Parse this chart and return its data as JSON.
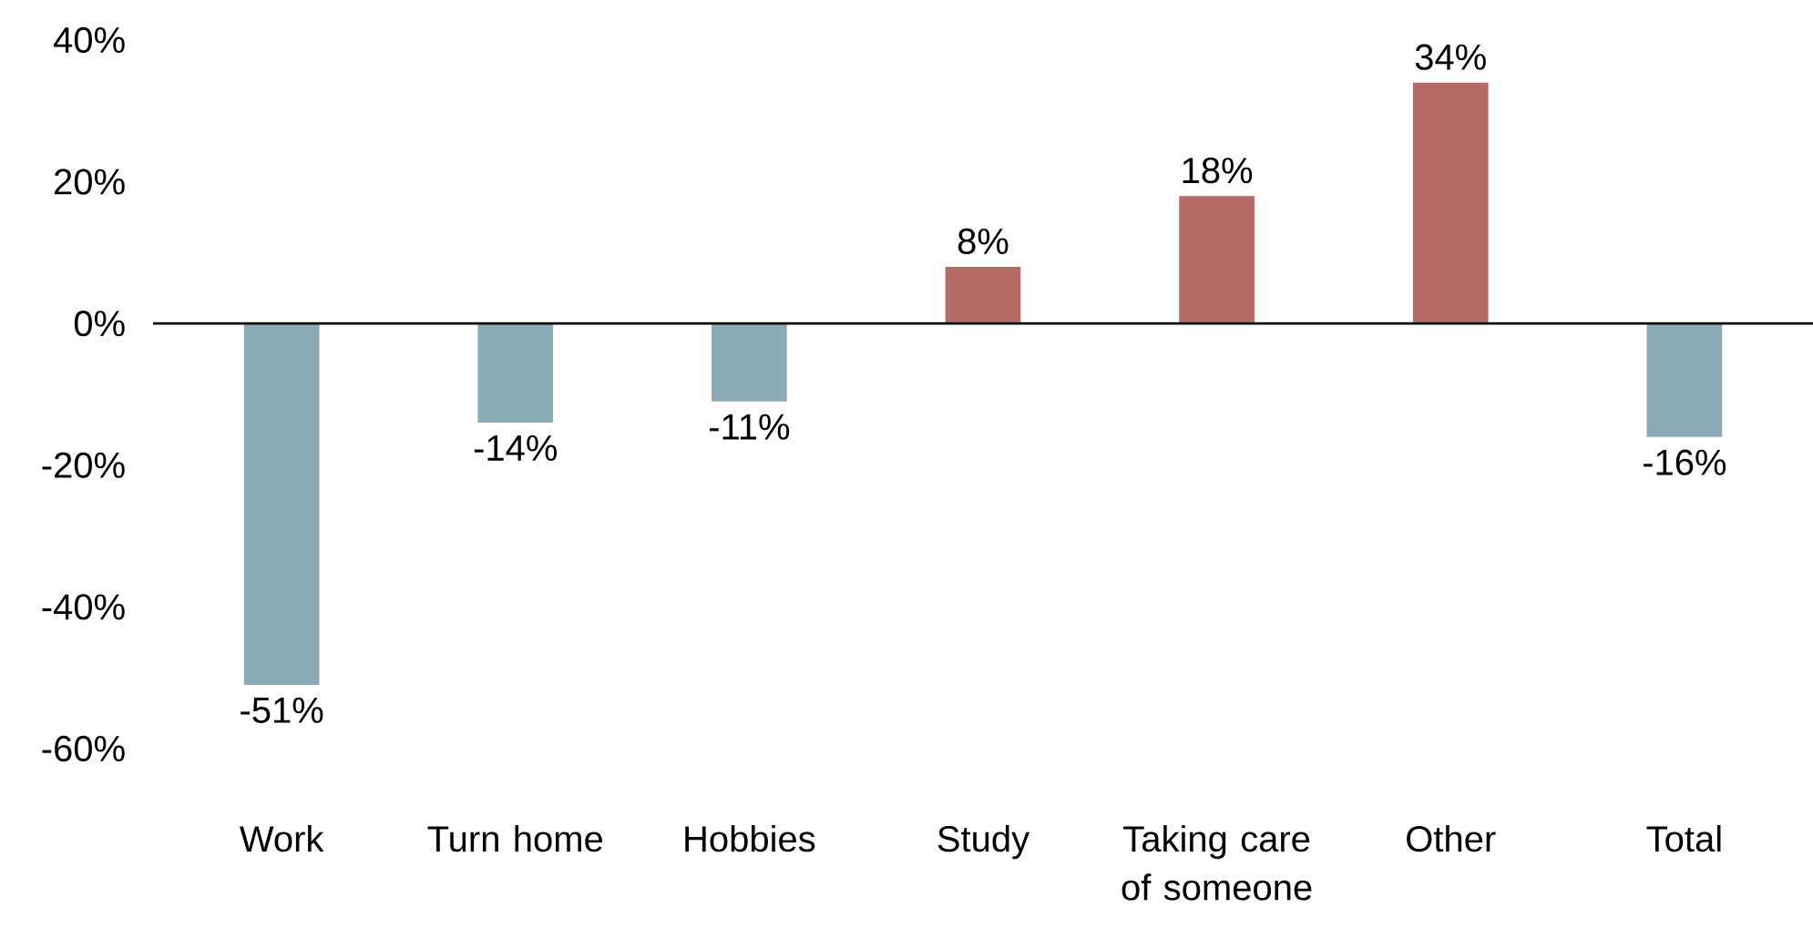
{
  "chart_data": {
    "type": "bar",
    "categories": [
      "Work",
      "Turn home",
      "Hobbies",
      "Study",
      "Taking care of someone",
      "Other",
      "Total"
    ],
    "values": [
      -51,
      -14,
      -11,
      8,
      18,
      34,
      -16
    ],
    "colors": [
      "#8aabb5",
      "#8aabb5",
      "#8aabb5",
      "#b76a65",
      "#b76a65",
      "#b76a65",
      "#8aabb5"
    ],
    "value_labels": [
      "-51%",
      "-14%",
      "-11%",
      "8%",
      "18%",
      "34%",
      "-16%"
    ],
    "ylim": [
      -60,
      40
    ],
    "yticks": [
      {
        "value": 40,
        "label": "40%"
      },
      {
        "value": 20,
        "label": "20%"
      },
      {
        "value": 0,
        "label": "0%"
      },
      {
        "value": -20,
        "label": "-20%"
      },
      {
        "value": -40,
        "label": "-40%"
      },
      {
        "value": -60,
        "label": "-60%"
      }
    ]
  }
}
